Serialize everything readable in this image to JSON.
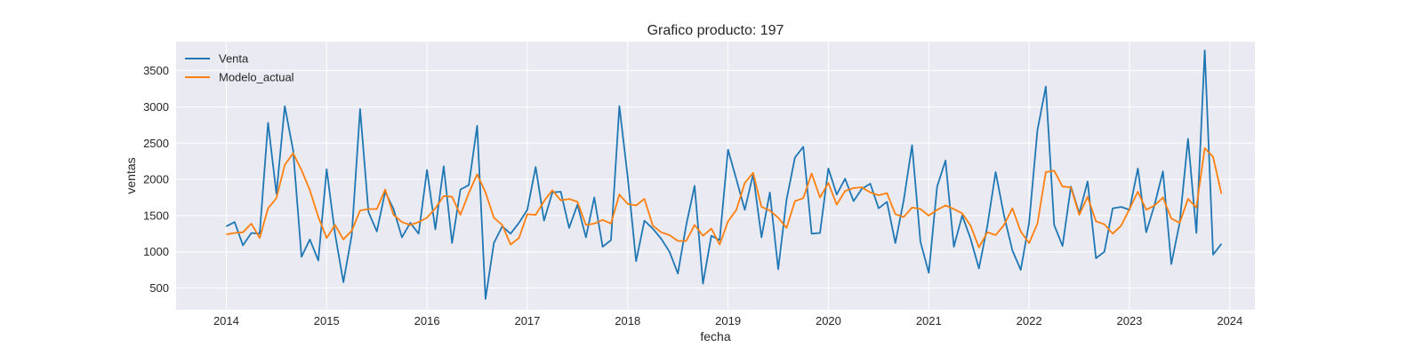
{
  "chart_data": {
    "type": "line",
    "title": "Grafico producto: 197",
    "xlabel": "fecha",
    "ylabel": "ventas",
    "x_axis": "monthly dates",
    "x_start": "2014-01",
    "xlim": [
      "2013-07",
      "2024-04"
    ],
    "ylim": [
      200,
      3900
    ],
    "x_ticks": [
      "2014",
      "2015",
      "2016",
      "2017",
      "2018",
      "2019",
      "2020",
      "2021",
      "2022",
      "2023",
      "2024"
    ],
    "y_ticks": [
      500,
      1000,
      1500,
      2000,
      2500,
      3000,
      3500
    ],
    "grid": true,
    "legend_position": "top-left",
    "background": "#eaeaf2",
    "series": [
      {
        "name": "Venta",
        "color": "#1f77b4",
        "values": [
          1350,
          1410,
          1090,
          1260,
          1250,
          2780,
          1800,
          3010,
          2400,
          930,
          1170,
          880,
          2140,
          1250,
          580,
          1230,
          2970,
          1550,
          1280,
          1830,
          1590,
          1200,
          1400,
          1250,
          2130,
          1310,
          2180,
          1120,
          1860,
          1920,
          2740,
          350,
          1120,
          1350,
          1250,
          1400,
          1580,
          2170,
          1430,
          1820,
          1830,
          1330,
          1650,
          1200,
          1750,
          1070,
          1160,
          3010,
          2030,
          870,
          1430,
          1320,
          1180,
          1000,
          700,
          1370,
          1910,
          560,
          1220,
          1160,
          2410,
          2000,
          1580,
          2070,
          1200,
          1820,
          760,
          1720,
          2300,
          2450,
          1250,
          1260,
          2150,
          1790,
          2010,
          1700,
          1870,
          1940,
          1600,
          1690,
          1120,
          1710,
          2470,
          1140,
          710,
          1900,
          2260,
          1070,
          1500,
          1180,
          770,
          1350,
          2100,
          1500,
          1020,
          750,
          1400,
          2680,
          3280,
          1370,
          1080,
          1900,
          1530,
          1970,
          910,
          1000,
          1600,
          1620,
          1580,
          2150,
          1270,
          1650,
          2110,
          830,
          1400,
          2560,
          1260,
          3780,
          960,
          1110
        ]
      },
      {
        "name": "Modelo_actual",
        "color": "#ff7f0e",
        "values": [
          1240,
          1260,
          1270,
          1390,
          1190,
          1600,
          1740,
          2200,
          2360,
          2130,
          1850,
          1480,
          1190,
          1370,
          1170,
          1290,
          1570,
          1590,
          1590,
          1860,
          1510,
          1410,
          1370,
          1410,
          1470,
          1600,
          1770,
          1760,
          1510,
          1810,
          2070,
          1820,
          1470,
          1370,
          1100,
          1190,
          1520,
          1510,
          1700,
          1850,
          1710,
          1730,
          1690,
          1370,
          1390,
          1440,
          1390,
          1790,
          1660,
          1640,
          1730,
          1360,
          1270,
          1230,
          1150,
          1150,
          1370,
          1220,
          1320,
          1100,
          1420,
          1580,
          1950,
          2090,
          1620,
          1570,
          1470,
          1330,
          1700,
          1740,
          2080,
          1750,
          1950,
          1650,
          1840,
          1880,
          1890,
          1820,
          1780,
          1810,
          1520,
          1480,
          1610,
          1590,
          1500,
          1580,
          1640,
          1590,
          1530,
          1360,
          1060,
          1270,
          1230,
          1370,
          1600,
          1280,
          1120,
          1390,
          2100,
          2120,
          1900,
          1890,
          1510,
          1760,
          1420,
          1380,
          1250,
          1360,
          1590,
          1830,
          1580,
          1640,
          1750,
          1460,
          1400,
          1730,
          1610,
          2430,
          2310,
          1800
        ]
      }
    ]
  }
}
